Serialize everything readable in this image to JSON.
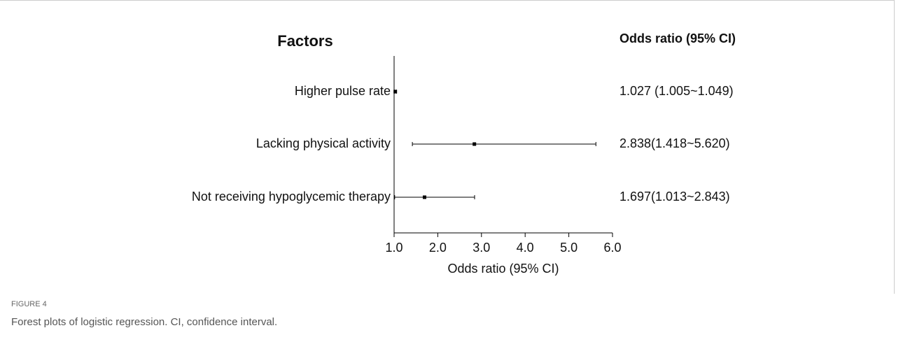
{
  "chart_data": {
    "type": "forest",
    "factor_header": "Factors",
    "value_header": "Odds ratio (95% CI)",
    "categories": [
      "Higher pulse rate",
      "Lacking physical activity",
      "Not receiving hypoglycemic therapy"
    ],
    "values": [
      1.027,
      2.838,
      1.697
    ],
    "lower": [
      1.005,
      1.418,
      1.013
    ],
    "upper": [
      1.049,
      5.62,
      2.843
    ],
    "value_labels": [
      "1.027 (1.005~1.049)",
      "2.838(1.418~5.620)",
      "1.697(1.013~2.843)"
    ],
    "color": "#000000",
    "xlim": [
      1,
      6
    ],
    "xticks": [
      {
        "value": 1,
        "label": "1.0"
      },
      {
        "value": 2,
        "label": "2.0"
      },
      {
        "value": 3,
        "label": "3.0"
      },
      {
        "value": 4,
        "label": "4.0"
      },
      {
        "value": 5,
        "label": "5.0"
      },
      {
        "value": 6,
        "label": "6.0"
      }
    ],
    "x_label": "Odds ratio (95% CI)"
  },
  "figure": {
    "label": "FIGURE 4",
    "caption": "Forest plots of logistic regression. CI, confidence interval."
  }
}
